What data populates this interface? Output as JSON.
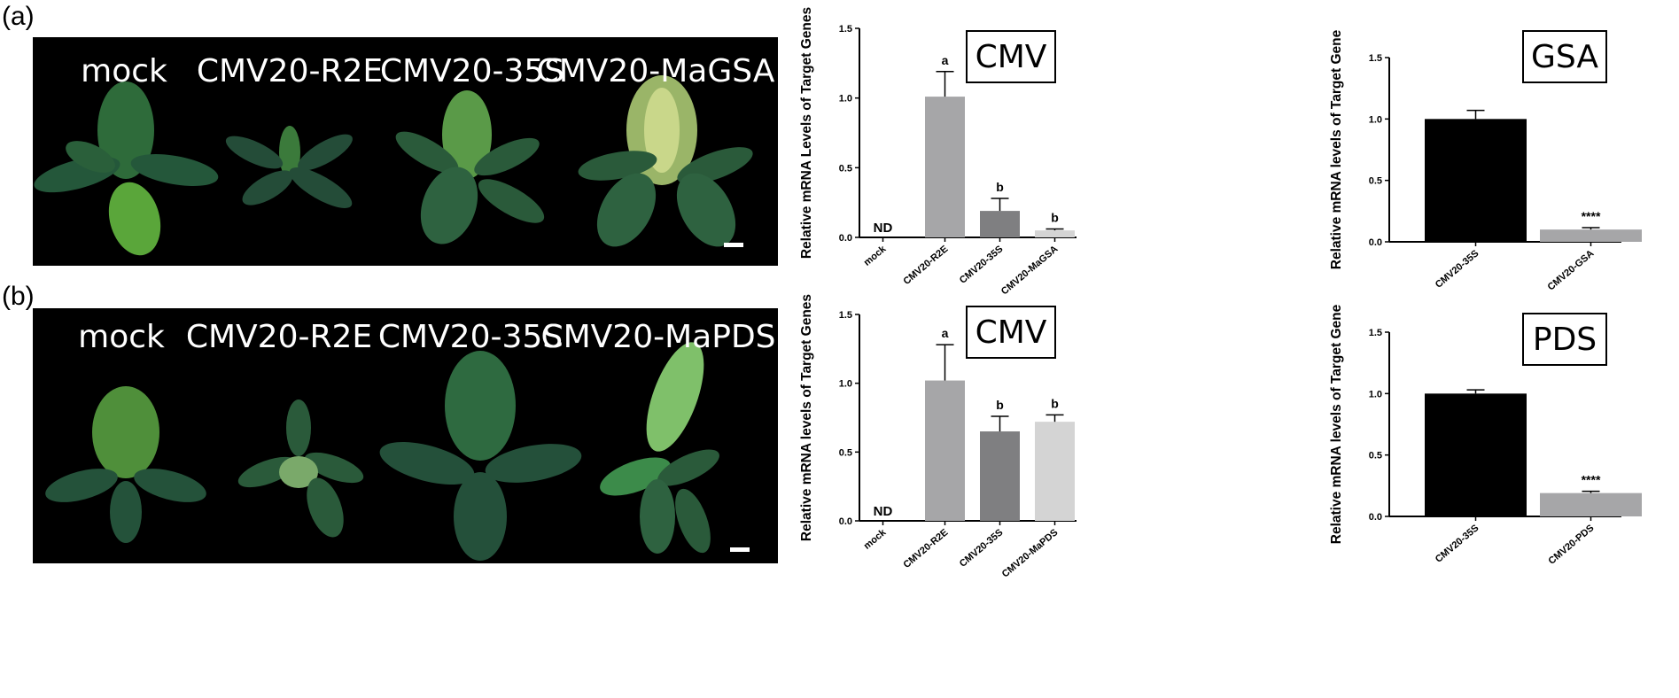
{
  "panels": {
    "a": {
      "label": "(a)",
      "photo_labels": [
        "mock",
        "CMV20-R2E",
        "CMV20-35S",
        "CMV20-MaGSA"
      ]
    },
    "b": {
      "label": "(b)",
      "photo_labels": [
        "mock",
        "CMV20-R2E",
        "CMV20-35S",
        "CMV20-MaPDS"
      ]
    }
  },
  "colors": {
    "bar_light_gray": "#a6a6a8",
    "bar_mid_gray": "#7f7f81",
    "bar_pale": "#d4d4d4",
    "bar_black": "#000000",
    "photo_bg": "#000000",
    "leaf": "#2e6b3a"
  },
  "chart_data": [
    {
      "id": "a-cmv",
      "type": "bar",
      "box_label": "CMV",
      "ylabel": "Relative mRNA Levels of Target Genes",
      "categories": [
        "mock",
        "CMV20-R2E",
        "CMV20-35S",
        "CMV20-MaGSA"
      ],
      "values": [
        0,
        1.01,
        0.19,
        0.05
      ],
      "errors": [
        0,
        0.18,
        0.09,
        0.01
      ],
      "annotations": [
        "ND",
        "a",
        "b",
        "b"
      ],
      "ylim": [
        0,
        1.5
      ],
      "yticks": [
        "0.0",
        "0.5",
        "1.0",
        "1.5"
      ]
    },
    {
      "id": "a-gsa",
      "type": "bar",
      "box_label": "GSA",
      "ylabel": "Relative mRNA levels of Target Gene",
      "categories": [
        "CMV20-35S",
        "CMV20-GSA"
      ],
      "values": [
        1.0,
        0.1
      ],
      "errors": [
        0.07,
        0.015
      ],
      "annotations": [
        "",
        "****"
      ],
      "ylim": [
        0,
        1.5
      ],
      "yticks": [
        "0.0",
        "0.5",
        "1.0",
        "1.5"
      ]
    },
    {
      "id": "b-cmv",
      "type": "bar",
      "box_label": "CMV",
      "ylabel": "Relative mRNA levels of Target Genes",
      "categories": [
        "mock",
        "CMV20-R2E",
        "CMV20-35S",
        "CMV20-MaPDS"
      ],
      "values": [
        0,
        1.02,
        0.65,
        0.72
      ],
      "errors": [
        0,
        0.26,
        0.11,
        0.05
      ],
      "annotations": [
        "ND",
        "a",
        "b",
        "b"
      ],
      "ylim": [
        0,
        1.5
      ],
      "yticks": [
        "0.0",
        "0.5",
        "1.0",
        "1.5"
      ]
    },
    {
      "id": "b-pds",
      "type": "bar",
      "box_label": "PDS",
      "ylabel": "Relative mRNA levels of Target Gene",
      "categories": [
        "CMV20-35S",
        "CMV20-PDS"
      ],
      "values": [
        1.0,
        0.19
      ],
      "errors": [
        0.03,
        0.015
      ],
      "annotations": [
        "",
        "****"
      ],
      "ylim": [
        0,
        1.5
      ],
      "yticks": [
        "0.0",
        "0.5",
        "1.0",
        "1.5"
      ]
    }
  ]
}
